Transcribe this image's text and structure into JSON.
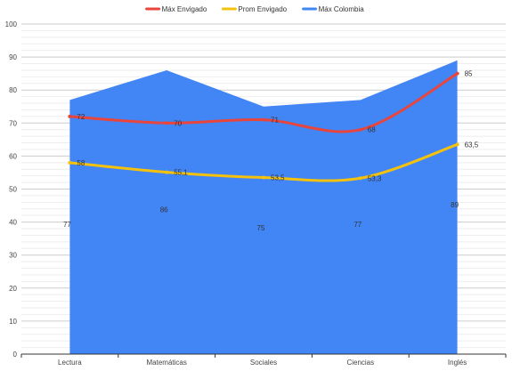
{
  "chart_data": {
    "type": "line",
    "categories": [
      "Lectura",
      "Matemáticas",
      "Sociales",
      "Ciencias",
      "Inglés"
    ],
    "series": [
      {
        "name": "Máx Envigado",
        "kind": "line",
        "color": "#e8453c",
        "values": [
          72,
          70,
          71,
          68,
          85
        ],
        "labels": [
          "72",
          "70",
          "71",
          "68",
          "85"
        ]
      },
      {
        "name": "Prom Envigado",
        "kind": "line",
        "color": "#f4c20d",
        "values": [
          58,
          55.1,
          53.5,
          53.3,
          63.5
        ],
        "labels": [
          "58",
          "55,1",
          "53,5",
          "53,3",
          "63,5"
        ]
      },
      {
        "name": "Máx Colombia",
        "kind": "area",
        "color": "#4285f4",
        "values": [
          77,
          86,
          75,
          77,
          89
        ],
        "labels": [
          "77",
          "86",
          "75",
          "77",
          "89"
        ]
      }
    ],
    "ylim": [
      0,
      100
    ],
    "yticks": [
      0,
      10,
      20,
      30,
      40,
      50,
      60,
      70,
      80,
      90,
      100
    ],
    "ytick_labels": [
      "0",
      "10",
      "20",
      "30",
      "40",
      "50",
      "60",
      "70",
      "80",
      "90",
      "100"
    ],
    "grid": true,
    "legend_position": "top",
    "title": "",
    "xlabel": "",
    "ylabel": ""
  }
}
